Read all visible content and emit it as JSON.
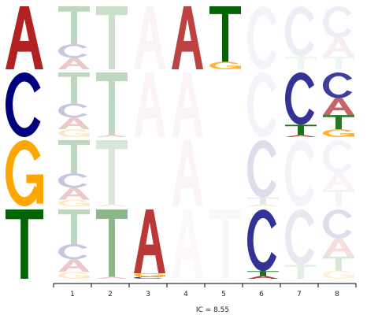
{
  "colors": {
    "A": "#b22222",
    "C": "#1c1c8c",
    "G": "#ffa500",
    "T": "#006400"
  },
  "key": {
    "rows": [
      {
        "letter": "A",
        "color": "#b22222"
      },
      {
        "letter": "C",
        "color": "#00007f"
      },
      {
        "letter": "G",
        "color": "#ffa500"
      },
      {
        "letter": "T",
        "color": "#006400"
      }
    ]
  },
  "rows": [
    {
      "label": "A",
      "positions": [
        [
          [
            "A",
            0.18,
            0.25
          ],
          [
            "C",
            0.22,
            0.25
          ],
          [
            "T",
            0.6,
            0.25
          ]
        ],
        [
          [
            "T",
            1.0,
            0.2
          ]
        ],
        [
          [
            "A",
            1.0,
            0.05
          ]
        ],
        [
          [
            "A",
            1.0,
            0.85
          ]
        ],
        [
          [
            "G",
            0.12,
            0.8
          ],
          [
            "T",
            0.88,
            1.0
          ]
        ],
        [
          [
            "C",
            1.0,
            0.05
          ]
        ],
        [
          [
            "T",
            0.2,
            0.06
          ],
          [
            "C",
            0.8,
            0.08
          ]
        ],
        [
          [
            "T",
            0.2,
            0.06
          ],
          [
            "A",
            0.3,
            0.08
          ],
          [
            "C",
            0.5,
            0.08
          ]
        ]
      ]
    },
    {
      "label": "C",
      "positions": [
        [
          [
            "G",
            0.12,
            0.25
          ],
          [
            "A",
            0.18,
            0.25
          ],
          [
            "C",
            0.22,
            0.25
          ],
          [
            "T",
            0.48,
            0.25
          ]
        ],
        [
          [
            "A",
            0.03,
            0.25
          ],
          [
            "T",
            0.97,
            0.25
          ]
        ],
        [
          [
            "A",
            1.0,
            0.05
          ]
        ],
        [
          [
            "A",
            1.0,
            0.05
          ]
        ],
        [],
        [
          [
            "C",
            1.0,
            0.05
          ]
        ],
        [
          [
            "A",
            0.03,
            0.8
          ],
          [
            "T",
            0.16,
            0.9
          ],
          [
            "C",
            0.81,
            0.9
          ]
        ],
        [
          [
            "G",
            0.12,
            0.85
          ],
          [
            "T",
            0.22,
            0.85
          ],
          [
            "A",
            0.26,
            0.7
          ],
          [
            "C",
            0.4,
            0.85
          ]
        ]
      ]
    },
    {
      "label": "G",
      "positions": [
        [
          [
            "G",
            0.1,
            0.25
          ],
          [
            "A",
            0.18,
            0.25
          ],
          [
            "C",
            0.22,
            0.25
          ],
          [
            "T",
            0.5,
            0.25
          ]
        ],
        [
          [
            "A",
            0.03,
            0.1
          ],
          [
            "T",
            0.97,
            0.15
          ]
        ],
        [],
        [
          [
            "A",
            1.0,
            0.05
          ]
        ],
        [],
        [
          [
            "A",
            0.03,
            0.12
          ],
          [
            "T",
            0.1,
            0.12
          ],
          [
            "C",
            0.87,
            0.15
          ]
        ],
        [
          [
            "C",
            1.0,
            0.05
          ]
        ],
        [
          [
            "T",
            0.25,
            0.05
          ],
          [
            "A",
            0.25,
            0.05
          ],
          [
            "C",
            0.5,
            0.05
          ]
        ]
      ]
    },
    {
      "label": "T",
      "positions": [
        [
          [
            "G",
            0.1,
            0.25
          ],
          [
            "A",
            0.18,
            0.25
          ],
          [
            "C",
            0.22,
            0.25
          ],
          [
            "T",
            0.5,
            0.25
          ]
        ],
        [
          [
            "A",
            0.03,
            0.25
          ],
          [
            "T",
            0.97,
            0.45
          ]
        ],
        [
          [
            "C",
            0.03,
            0.9
          ],
          [
            "G",
            0.05,
            0.9
          ],
          [
            "A",
            0.92,
            0.9
          ]
        ],
        [
          [
            "A",
            1.0,
            0.03
          ]
        ],
        [
          [
            "T",
            1.0,
            0.03
          ]
        ],
        [
          [
            "A",
            0.04,
            0.9
          ],
          [
            "T",
            0.07,
            0.9
          ],
          [
            "C",
            0.89,
            0.9
          ]
        ],
        [
          [
            "T",
            0.2,
            0.1
          ],
          [
            "C",
            0.8,
            0.1
          ]
        ],
        [
          [
            "G",
            0.12,
            0.15
          ],
          [
            "T",
            0.2,
            0.15
          ],
          [
            "A",
            0.26,
            0.15
          ],
          [
            "C",
            0.42,
            0.15
          ]
        ]
      ]
    }
  ],
  "axis": {
    "ticks": [
      "1",
      "2",
      "3",
      "4",
      "5",
      "6",
      "7",
      "8"
    ]
  },
  "ic_text": "IC = 8.55"
}
